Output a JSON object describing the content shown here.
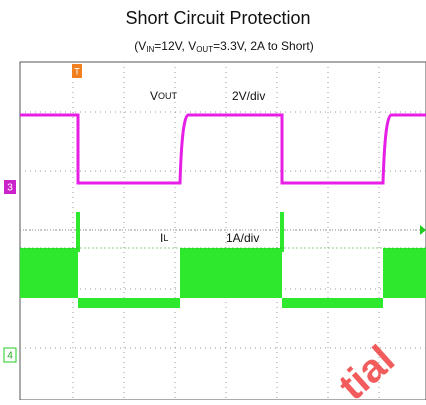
{
  "header": {
    "title": "Short Circuit Protection",
    "subtitle": [
      {
        "text": "(V"
      },
      {
        "text": "IN",
        "sub": true
      },
      {
        "text": "=12V, V"
      },
      {
        "text": "OUT",
        "sub": true
      },
      {
        "text": "=3.3V, 2A to Short)"
      }
    ]
  },
  "scope": {
    "trigger_marker": "T",
    "channels": [
      {
        "marker": "3",
        "label": "V",
        "label_sub": "OUT",
        "scale": "2V/div"
      },
      {
        "marker": "4",
        "label": "I",
        "label_sub": "L",
        "scale": "1A/div"
      }
    ],
    "watermark": "tial"
  }
}
